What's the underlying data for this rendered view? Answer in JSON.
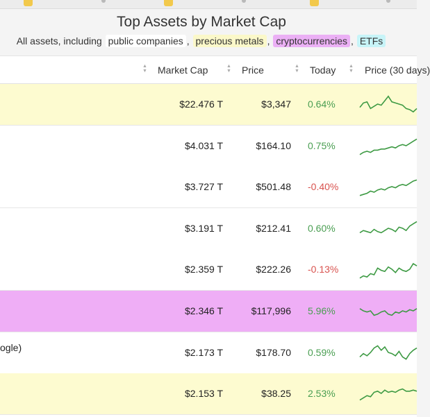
{
  "header": {
    "title": "Top Assets by Market Cap",
    "subtitle_prefix": "All assets, including",
    "filters": {
      "public_companies": "public companies",
      "precious_metals": "precious metals",
      "cryptocurrencies": "cryptocurrencies",
      "etfs": "ETFs"
    },
    "separator": ","
  },
  "table": {
    "columns": {
      "market_cap": "Market Cap",
      "price": "Price",
      "today": "Today",
      "price_30d": "Price (30 days)"
    },
    "rows": [
      {
        "name": "",
        "market_cap": "$22.476 T",
        "price": "$3,347",
        "today": "0.64%",
        "direction": "up",
        "category": "precious-metal",
        "spark": [
          0.35,
          0.55,
          0.6,
          0.3,
          0.4,
          0.5,
          0.45,
          0.65,
          0.85,
          0.6,
          0.55,
          0.5,
          0.45,
          0.3,
          0.25,
          0.15,
          0.3
        ]
      },
      {
        "name": "",
        "market_cap": "$4.031 T",
        "price": "$164.10",
        "today": "0.75%",
        "direction": "up",
        "category": "company",
        "spark": [
          0.1,
          0.2,
          0.25,
          0.2,
          0.3,
          0.3,
          0.35,
          0.35,
          0.4,
          0.45,
          0.4,
          0.5,
          0.55,
          0.5,
          0.6,
          0.7,
          0.8
        ]
      },
      {
        "name": "",
        "market_cap": "$3.727 T",
        "price": "$501.48",
        "today": "-0.40%",
        "direction": "down",
        "category": "company",
        "spark": [
          0.1,
          0.15,
          0.2,
          0.3,
          0.25,
          0.35,
          0.4,
          0.35,
          0.45,
          0.5,
          0.45,
          0.55,
          0.6,
          0.55,
          0.65,
          0.75,
          0.8
        ]
      },
      {
        "name": "",
        "market_cap": "$3.191 T",
        "price": "$212.41",
        "today": "0.60%",
        "direction": "up",
        "category": "company",
        "spark": [
          0.3,
          0.4,
          0.35,
          0.3,
          0.45,
          0.35,
          0.3,
          0.4,
          0.5,
          0.45,
          0.35,
          0.55,
          0.5,
          0.4,
          0.6,
          0.7,
          0.8
        ]
      },
      {
        "name": "",
        "market_cap": "$2.359 T",
        "price": "$222.26",
        "today": "-0.13%",
        "direction": "down",
        "category": "company",
        "spark": [
          0.1,
          0.2,
          0.15,
          0.3,
          0.25,
          0.55,
          0.45,
          0.4,
          0.6,
          0.5,
          0.35,
          0.55,
          0.45,
          0.4,
          0.5,
          0.75,
          0.65
        ]
      },
      {
        "name": "",
        "market_cap": "$2.346 T",
        "price": "$117,996",
        "today": "5.96%",
        "direction": "up",
        "category": "crypto",
        "spark": [
          0.6,
          0.5,
          0.45,
          0.5,
          0.3,
          0.35,
          0.45,
          0.5,
          0.35,
          0.3,
          0.45,
          0.4,
          0.5,
          0.45,
          0.55,
          0.5,
          0.6
        ]
      },
      {
        "name": "ogle)",
        "market_cap": "$2.173 T",
        "price": "$178.70",
        "today": "0.59%",
        "direction": "up",
        "category": "company",
        "spark": [
          0.3,
          0.45,
          0.35,
          0.5,
          0.7,
          0.8,
          0.6,
          0.75,
          0.5,
          0.45,
          0.35,
          0.55,
          0.3,
          0.2,
          0.45,
          0.6,
          0.7
        ]
      },
      {
        "name": "",
        "market_cap": "$2.153 T",
        "price": "$38.25",
        "today": "2.53%",
        "direction": "up",
        "category": "precious-metal",
        "spark": [
          0.2,
          0.3,
          0.4,
          0.35,
          0.55,
          0.6,
          0.5,
          0.65,
          0.55,
          0.6,
          0.55,
          0.65,
          0.7,
          0.6,
          0.6,
          0.65,
          0.6
        ]
      }
    ]
  },
  "colors": {
    "precious_metal_row": "#fdfbd0",
    "crypto_row": "#efaef6",
    "company_row": "#ffffff",
    "positive": "#4a9e52",
    "negative": "#d9534f",
    "sparkline": "#3d9a43"
  }
}
